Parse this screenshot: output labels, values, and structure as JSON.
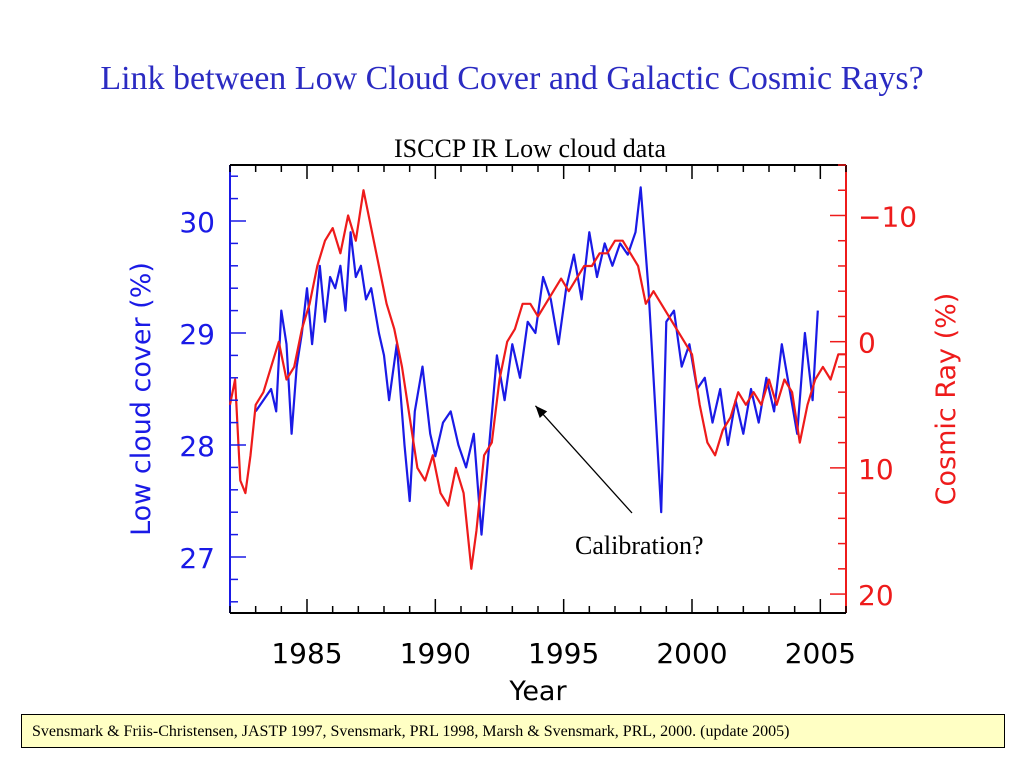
{
  "slide": {
    "title": "Link between Low Cloud Cover and Galactic Cosmic Rays?",
    "footer": "Svensmark & Friis-Christensen, JASTP 1997, Svensmark, PRL  1998, Marsh & Svensmark, PRL, 2000. (update 2005)"
  },
  "colors": {
    "title": "#2b2bc2",
    "cloud": "#1a1ae6",
    "cosmic": "#ee1b1b",
    "footer_bg": "#ffffc4"
  },
  "chart_data": {
    "type": "line",
    "title": "ISCCP IR Low cloud data",
    "xlabel": "Year",
    "ylabel_left": "Low cloud cover (%)",
    "ylabel_right": "Cosmic Ray (%)",
    "xlim": [
      1982,
      2006
    ],
    "ylim_left": [
      26.5,
      30.5
    ],
    "ylim_right": [
      21.5,
      -14
    ],
    "right_axis_inverted": true,
    "x_ticks": [
      1985,
      1990,
      1995,
      2000,
      2005
    ],
    "y_ticks_left": [
      27,
      28,
      29,
      30
    ],
    "y_ticks_right": [
      -10,
      0,
      10,
      20
    ],
    "grid": false,
    "annotation": {
      "text": "Calibration?",
      "points_to": {
        "x": 1993.9,
        "y": 28.35
      }
    },
    "series": [
      {
        "name": "Low cloud cover",
        "axis": "left",
        "x": [
          1983.0,
          1983.3,
          1983.6,
          1983.8,
          1984.0,
          1984.2,
          1984.4,
          1984.6,
          1984.8,
          1985.0,
          1985.2,
          1985.5,
          1985.7,
          1985.9,
          1986.1,
          1986.3,
          1986.5,
          1986.7,
          1986.9,
          1987.1,
          1987.3,
          1987.5,
          1987.8,
          1988.0,
          1988.2,
          1988.5,
          1988.8,
          1989.0,
          1989.2,
          1989.5,
          1989.8,
          1990.0,
          1990.3,
          1990.6,
          1990.9,
          1991.2,
          1991.5,
          1991.8,
          1992.1,
          1992.4,
          1992.7,
          1993.0,
          1993.3,
          1993.6,
          1993.9,
          1994.2,
          1994.5,
          1994.8,
          1995.1,
          1995.4,
          1995.7,
          1996.0,
          1996.3,
          1996.6,
          1996.9,
          1997.2,
          1997.5,
          1997.8,
          1998.0,
          1998.3,
          1998.6,
          1998.8,
          1999.0,
          1999.3,
          1999.6,
          1999.9,
          2000.2,
          2000.5,
          2000.8,
          2001.1,
          2001.4,
          2001.7,
          2002.0,
          2002.3,
          2002.6,
          2002.9,
          2003.2,
          2003.5,
          2003.8,
          2004.1,
          2004.4,
          2004.7,
          2004.9
        ],
        "values": [
          28.3,
          28.4,
          28.5,
          28.3,
          29.2,
          28.9,
          28.1,
          28.7,
          29.0,
          29.4,
          28.9,
          29.6,
          29.1,
          29.5,
          29.4,
          29.6,
          29.2,
          29.9,
          29.5,
          29.6,
          29.3,
          29.4,
          29.0,
          28.8,
          28.4,
          28.9,
          28.0,
          27.5,
          28.3,
          28.7,
          28.1,
          27.9,
          28.2,
          28.3,
          28.0,
          27.8,
          28.1,
          27.2,
          28.0,
          28.8,
          28.4,
          28.9,
          28.6,
          29.1,
          29.0,
          29.5,
          29.3,
          28.9,
          29.4,
          29.7,
          29.3,
          29.9,
          29.5,
          29.8,
          29.6,
          29.8,
          29.7,
          29.9,
          30.3,
          29.4,
          28.2,
          27.4,
          29.1,
          29.2,
          28.7,
          28.9,
          28.5,
          28.6,
          28.2,
          28.5,
          28.0,
          28.4,
          28.1,
          28.5,
          28.2,
          28.6,
          28.3,
          28.9,
          28.5,
          28.1,
          29.0,
          28.4,
          29.2
        ]
      },
      {
        "name": "Cosmic Ray",
        "axis": "right",
        "x": [
          1982.0,
          1982.2,
          1982.4,
          1982.6,
          1982.8,
          1983.0,
          1983.3,
          1983.6,
          1983.9,
          1984.2,
          1984.5,
          1984.8,
          1985.1,
          1985.4,
          1985.7,
          1986.0,
          1986.3,
          1986.6,
          1986.9,
          1987.2,
          1987.5,
          1987.8,
          1988.1,
          1988.4,
          1988.7,
          1989.0,
          1989.3,
          1989.6,
          1989.9,
          1990.2,
          1990.5,
          1990.8,
          1991.1,
          1991.4,
          1991.6,
          1991.9,
          1992.2,
          1992.5,
          1992.8,
          1993.1,
          1993.4,
          1993.7,
          1994.0,
          1994.3,
          1994.6,
          1994.9,
          1995.2,
          1995.5,
          1995.8,
          1996.1,
          1996.4,
          1996.7,
          1997.0,
          1997.3,
          1997.6,
          1997.9,
          1998.2,
          1998.5,
          1998.8,
          1999.1,
          1999.4,
          1999.7,
          2000.0,
          2000.3,
          2000.6,
          2000.9,
          2001.2,
          2001.5,
          2001.8,
          2002.1,
          2002.4,
          2002.7,
          2003.0,
          2003.3,
          2003.6,
          2003.9,
          2004.2,
          2004.5,
          2004.8,
          2005.1,
          2005.4,
          2005.7,
          2006.0
        ],
        "values": [
          5,
          3,
          11,
          12,
          9,
          5,
          4,
          2,
          0,
          3,
          2,
          -1,
          -3,
          -6,
          -8,
          -9,
          -7,
          -10,
          -8,
          -12,
          -9,
          -6,
          -3,
          -1,
          2,
          6,
          10,
          11,
          9,
          12,
          13,
          10,
          12,
          18,
          15,
          9,
          8,
          3,
          0,
          -1,
          -3,
          -3,
          -2,
          -3,
          -4,
          -5,
          -4,
          -5,
          -6,
          -6,
          -7,
          -7,
          -8,
          -8,
          -7,
          -6,
          -3,
          -4,
          -3,
          -2,
          -1,
          0,
          1,
          5,
          8,
          9,
          7,
          6,
          4,
          5,
          4,
          5,
          3,
          5,
          3,
          4,
          8,
          5,
          3,
          2,
          3,
          1,
          1
        ]
      }
    ]
  }
}
